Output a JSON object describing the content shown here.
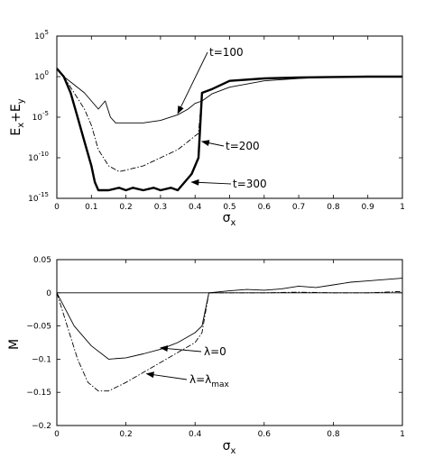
{
  "chart_data": [
    {
      "type": "line",
      "xlabel": "σx",
      "ylabel": "Ex+Ey",
      "xscale": "linear",
      "yscale": "log",
      "xlim": [
        0,
        1
      ],
      "ylim": [
        1e-15,
        100000.0
      ],
      "xticks": [
        "0",
        "0.1",
        "0.2",
        "0.3",
        "0.4",
        "0.5",
        "0.6",
        "0.7",
        "0.8",
        "0.9",
        "1"
      ],
      "yticks": [
        {
          "base": "10",
          "exp": "5"
        },
        {
          "base": "10",
          "exp": "0"
        },
        {
          "base": "10",
          "exp": "-5"
        },
        {
          "base": "10",
          "exp": "-10"
        },
        {
          "base": "10",
          "exp": "-15"
        }
      ],
      "series": [
        {
          "name": "t=100",
          "line_style": "thin-solid",
          "x": [
            0,
            0.02,
            0.05,
            0.08,
            0.1,
            0.12,
            0.14,
            0.155,
            0.17,
            0.2,
            0.25,
            0.3,
            0.35,
            0.38,
            0.4,
            0.42,
            0.45,
            0.5,
            0.6,
            0.7,
            0.8,
            0.9,
            1.0
          ],
          "y": [
            10.0,
            1.0,
            0.1,
            0.01,
            0.001,
            0.0001,
            0.001,
            1e-05,
            2e-06,
            2e-06,
            2e-06,
            4e-06,
            2e-05,
            0.0001,
            0.0005,
            0.001,
            0.008,
            0.05,
            0.3,
            0.6,
            0.9,
            1.0,
            1.0
          ]
        },
        {
          "name": "t=200",
          "line_style": "dash-dot",
          "x": [
            0,
            0.02,
            0.05,
            0.08,
            0.1,
            0.12,
            0.15,
            0.18,
            0.2,
            0.25,
            0.3,
            0.35,
            0.38,
            0.4,
            0.41,
            0.42
          ],
          "y": [
            10.0,
            1.0,
            0.01,
            0.0001,
            1e-06,
            1e-09,
            1e-11,
            2e-12,
            3e-12,
            1e-11,
            1e-10,
            1e-09,
            1e-08,
            5e-08,
            1e-07,
            0.01
          ]
        },
        {
          "name": "t=300",
          "line_style": "thick-solid",
          "x": [
            0,
            0.02,
            0.04,
            0.06,
            0.08,
            0.1,
            0.11,
            0.12,
            0.15,
            0.18,
            0.2,
            0.22,
            0.25,
            0.28,
            0.3,
            0.33,
            0.35,
            0.37,
            0.39,
            0.4,
            0.41,
            0.42,
            0.45,
            0.5,
            0.6,
            0.7,
            0.8,
            0.9,
            1.0
          ],
          "y": [
            10.0,
            1.0,
            0.01,
            1e-05,
            1e-08,
            1e-11,
            1e-13,
            1e-14,
            1e-14,
            2e-14,
            1e-14,
            2e-14,
            1e-14,
            2e-14,
            1e-14,
            2e-14,
            1e-14,
            1e-13,
            1e-12,
            1e-11,
            1e-10,
            0.01,
            0.03,
            0.3,
            0.6,
            0.8,
            0.9,
            1.0,
            1.0
          ]
        }
      ],
      "annotations": [
        {
          "text": "t=100",
          "target_x": 0.35,
          "target_y": 3e-05
        },
        {
          "text": "t=200",
          "target_x": 0.42,
          "target_y": 1e-08
        },
        {
          "text": "t=300",
          "target_x": 0.39,
          "target_y": 1e-13
        }
      ]
    },
    {
      "type": "line",
      "xlabel": "σx",
      "ylabel": "M",
      "xlim": [
        0,
        1
      ],
      "ylim": [
        -0.2,
        0.05
      ],
      "xticks": [
        "0",
        "0.2",
        "0.4",
        "0.6",
        "0.8",
        "1"
      ],
      "yticks": [
        "0.05",
        "0",
        "−0.05",
        "−0.1",
        "−0.15",
        "−0.2"
      ],
      "series": [
        {
          "name": "λ=0",
          "line_style": "thin-solid",
          "x": [
            0,
            0.05,
            0.1,
            0.15,
            0.2,
            0.25,
            0.3,
            0.35,
            0.4,
            0.42,
            0.44,
            0.5,
            0.55,
            0.6,
            0.65,
            0.7,
            0.75,
            0.8,
            0.85,
            0.9,
            0.95,
            1.0
          ],
          "y": [
            0,
            -0.05,
            -0.08,
            -0.1,
            -0.098,
            -0.092,
            -0.085,
            -0.075,
            -0.06,
            -0.05,
            0,
            0.003,
            0.005,
            0.004,
            0.006,
            0.01,
            0.008,
            0.012,
            0.016,
            0.018,
            0.02,
            0.022
          ]
        },
        {
          "name": "λ=λmax",
          "line_style": "dash-dot",
          "x": [
            0,
            0.03,
            0.06,
            0.09,
            0.12,
            0.15,
            0.2,
            0.25,
            0.3,
            0.35,
            0.4,
            0.42,
            0.44,
            0.5,
            0.6,
            0.7,
            0.8,
            0.9,
            1.0
          ],
          "y": [
            0,
            -0.05,
            -0.1,
            -0.135,
            -0.148,
            -0.148,
            -0.135,
            -0.12,
            -0.105,
            -0.09,
            -0.075,
            -0.06,
            0,
            0,
            0,
            0.001,
            0,
            0,
            0.002
          ]
        }
      ],
      "annotations": [
        {
          "text": "λ=0",
          "target_x": 0.3,
          "target_y": -0.083
        },
        {
          "text": "λ=λmax",
          "target_x": 0.26,
          "target_y": -0.122
        }
      ]
    }
  ]
}
